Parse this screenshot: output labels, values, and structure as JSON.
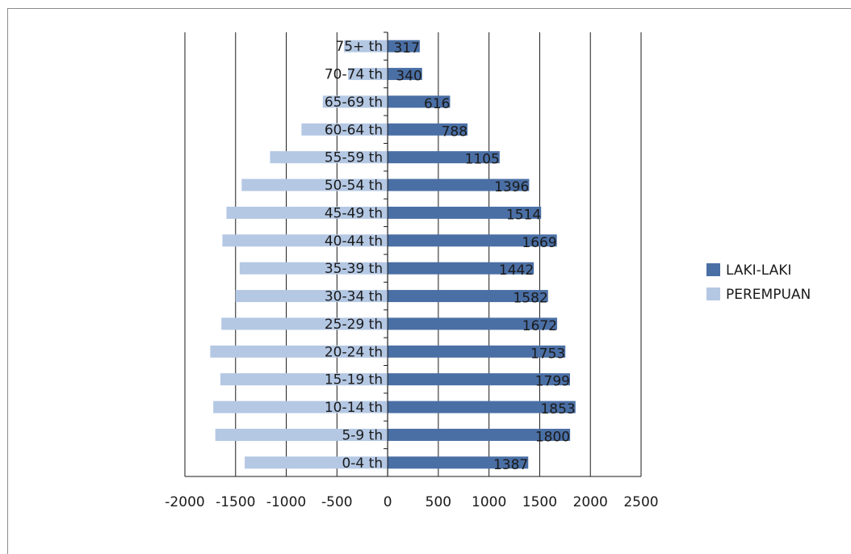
{
  "chart_data": {
    "type": "bar",
    "orientation": "horizontal",
    "title": "",
    "xlabel": "",
    "ylabel": "",
    "xlim": [
      -2000,
      2500
    ],
    "x_ticks": [
      -2000,
      -1500,
      -1000,
      -500,
      0,
      500,
      1000,
      1500,
      2000,
      2500
    ],
    "grid": "vertical major gridlines",
    "legend_position": "right",
    "categories": [
      "0-4 th",
      "5-9 th",
      "10-14 th",
      "15-19 th",
      "20-24 th",
      "25-29 th",
      "30-34 th",
      "35-39 th",
      "40-44 th",
      "45-49 th",
      "50-54 th",
      "55-59 th",
      "60-64 th",
      "65-69 th",
      "70-74 th",
      "75+ th"
    ],
    "series": [
      {
        "name": "LAKI-LAKI",
        "color": "#4a6fa5",
        "values": [
          1387,
          1800,
          1853,
          1799,
          1753,
          1672,
          1582,
          1442,
          1669,
          1514,
          1396,
          1105,
          788,
          616,
          340,
          317
        ]
      },
      {
        "name": "PEREMPUAN",
        "color": "#b4c8e4",
        "values": [
          -1410,
          -1700,
          -1720,
          -1650,
          -1750,
          -1640,
          -1500,
          -1460,
          -1630,
          -1590,
          -1440,
          -1160,
          -850,
          -640,
          -390,
          -430
        ]
      }
    ]
  }
}
